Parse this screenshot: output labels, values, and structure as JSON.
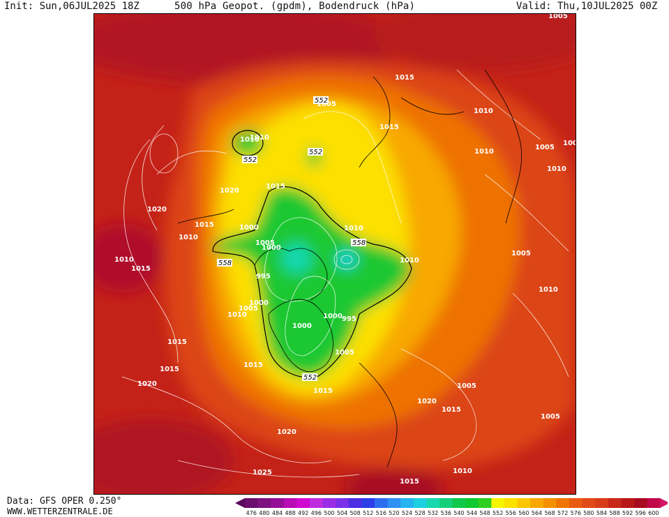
{
  "header": {
    "init": "Init: Sun,06JUL2025 18Z",
    "title": "500 hPa Geopot. (gpdm), Bodendruck (hPa)",
    "valid": "Valid: Thu,10JUL2025 00Z"
  },
  "footer": {
    "data_source": "Data: GFS OPER 0.250°",
    "website": "WWW.WETTERZENTRALE.DE"
  },
  "colorbar": {
    "ticks": [
      "476",
      "480",
      "484",
      "488",
      "492",
      "496",
      "500",
      "504",
      "508",
      "512",
      "516",
      "520",
      "524",
      "528",
      "532",
      "536",
      "540",
      "544",
      "548",
      "552",
      "556",
      "560",
      "564",
      "568",
      "572",
      "576",
      "580",
      "584",
      "588",
      "592",
      "596",
      "600"
    ],
    "colors": [
      "#6a0f6e",
      "#7e1280",
      "#950e98",
      "#b80cb5",
      "#d00ad0",
      "#c02de0",
      "#9a2de6",
      "#7a30e8",
      "#4b2fe2",
      "#2c3ee8",
      "#2d6ef0",
      "#2f90f5",
      "#25b4f0",
      "#1ed0e0",
      "#18d8b0",
      "#14d078",
      "#12c84a",
      "#10c830",
      "#30d020",
      "#f5f500",
      "#fce000",
      "#fbc600",
      "#f8a800",
      "#f59000",
      "#f07400",
      "#e85a10",
      "#e04a18",
      "#d83c18",
      "#c82818",
      "#b81818",
      "#a80c20",
      "#c00a4a"
    ]
  },
  "contour_labels": {
    "pressure": [
      "1005",
      "1015",
      "1010",
      "1015",
      "1005",
      "1010",
      "1005",
      "1010",
      "1010",
      "1005",
      "1015",
      "1020",
      "1015",
      "1010",
      "1015",
      "1020",
      "1010",
      "1000",
      "1010",
      "1005",
      "1010",
      "995",
      "1000",
      "1010",
      "1005",
      "1000",
      "1005",
      "1000",
      "995",
      "1000",
      "1005",
      "1010",
      "1010",
      "1015",
      "1015",
      "1015",
      "1005",
      "1015",
      "1020",
      "1020",
      "1005",
      "1015",
      "1020",
      "1025",
      "1010",
      "1015"
    ],
    "geopotential": [
      "552",
      "552",
      "552",
      "558",
      "558",
      "552"
    ]
  }
}
